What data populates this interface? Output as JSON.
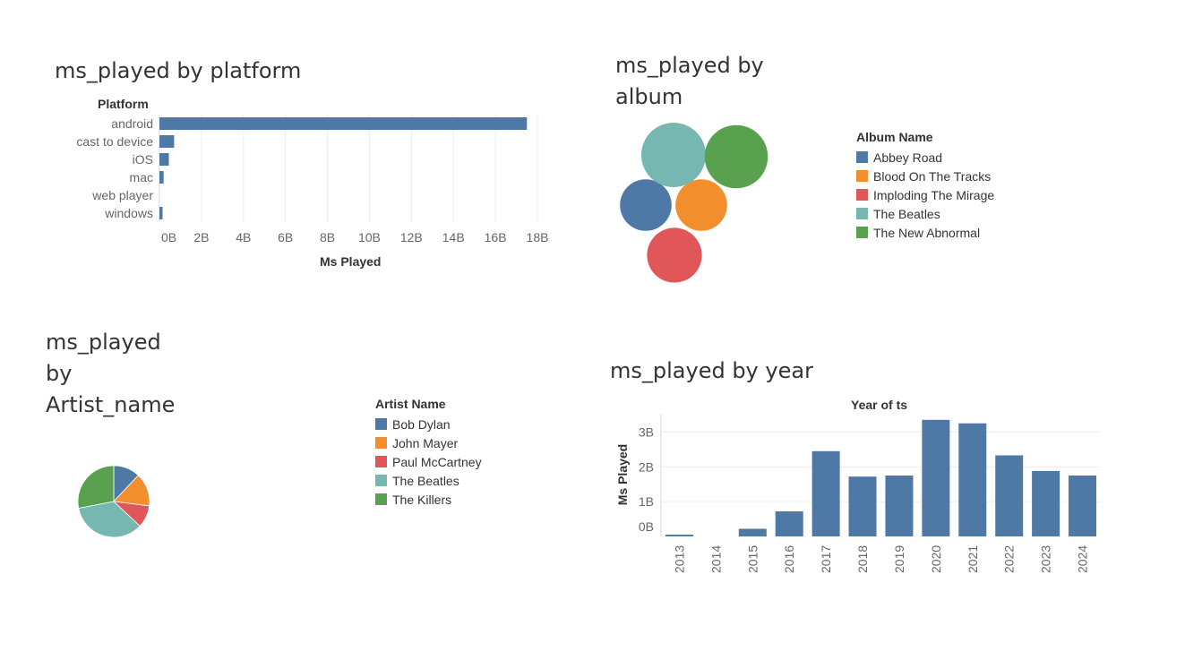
{
  "colors": {
    "blue": "#4e79a7",
    "orange": "#f28e2b",
    "red": "#e15759",
    "teal": "#76b7b2",
    "green": "#59a14f",
    "grid": "#ececec",
    "axis_text": "#666666"
  },
  "chart_data": [
    {
      "id": "platform",
      "type": "bar",
      "orientation": "horizontal",
      "title": "ms_played by platform",
      "row_header": "Platform",
      "xlabel": "Ms Played",
      "categories": [
        "android",
        "cast to device",
        "iOS",
        "mac",
        "web player",
        "windows"
      ],
      "values": [
        17.5,
        0.7,
        0.45,
        0.2,
        0.0,
        0.15
      ],
      "value_unit": "B",
      "xlim": [
        0,
        18
      ],
      "xticks": [
        "0B",
        "2B",
        "4B",
        "6B",
        "8B",
        "10B",
        "12B",
        "14B",
        "16B",
        "18B"
      ],
      "grid": true,
      "color": "#4e79a7"
    },
    {
      "id": "album",
      "type": "bubble",
      "title": "ms_played by\nalbum",
      "legend_title": "Album Name",
      "legend_position": "right",
      "categories": [
        "Abbey Road",
        "Blood On The Tracks",
        "Imploding The Mirage",
        "The Beatles",
        "The New Abnormal"
      ],
      "colors": [
        "#4e79a7",
        "#f28e2b",
        "#e15759",
        "#76b7b2",
        "#59a14f"
      ],
      "relative_size": [
        0.8,
        0.8,
        0.85,
        1.0,
        0.98
      ]
    },
    {
      "id": "artist",
      "type": "pie",
      "title": "ms_played\nby\nArtist_name",
      "legend_title": "Artist Name",
      "legend_position": "right",
      "categories": [
        "Bob Dylan",
        "John Mayer",
        "Paul McCartney",
        "The Beatles",
        "The Killers"
      ],
      "colors": [
        "#4e79a7",
        "#f28e2b",
        "#e15759",
        "#76b7b2",
        "#59a14f"
      ],
      "values": [
        12,
        15,
        10,
        35,
        28
      ]
    },
    {
      "id": "year",
      "type": "bar",
      "orientation": "vertical",
      "title": "ms_played by year",
      "column_header": "Year of ts",
      "ylabel": "Ms Played",
      "categories": [
        "2013",
        "2014",
        "2015",
        "2016",
        "2017",
        "2018",
        "2019",
        "2020",
        "2021",
        "2022",
        "2023",
        "2024"
      ],
      "values": [
        0.05,
        0.0,
        0.22,
        0.72,
        2.45,
        1.72,
        1.75,
        3.35,
        3.25,
        2.33,
        1.88,
        1.75
      ],
      "value_unit": "B",
      "ylim": [
        0,
        3.5
      ],
      "yticks": [
        "0B",
        "1B",
        "2B",
        "3B"
      ],
      "grid": true,
      "color": "#4e79a7"
    }
  ]
}
